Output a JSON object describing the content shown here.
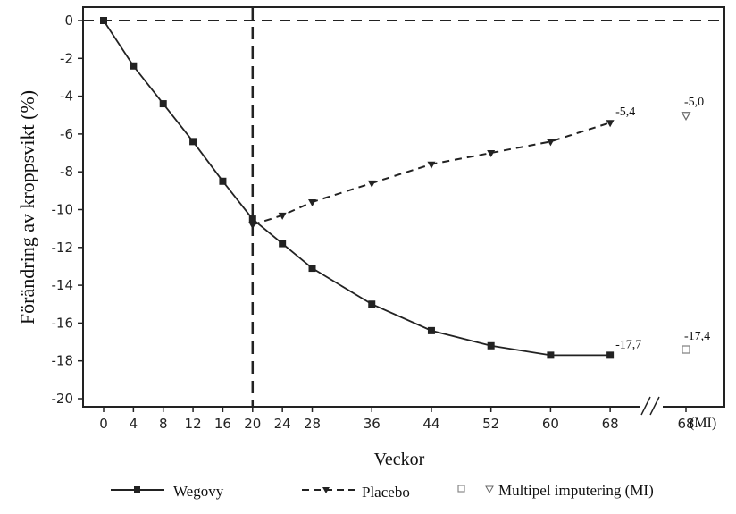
{
  "chart_data": {
    "type": "line",
    "title": "",
    "xlabel": "Veckor",
    "ylabel": "Förändring av kroppsvikt (%)",
    "ylim": [
      -20,
      0
    ],
    "yticks": [
      0,
      -2,
      -4,
      -6,
      -8,
      -10,
      -12,
      -14,
      -16,
      -18,
      -20
    ],
    "xticks": [
      0,
      4,
      8,
      12,
      16,
      20,
      24,
      28,
      36,
      44,
      52,
      60,
      68
    ],
    "mi_tick_label": "68",
    "mi_tick_suffix": "(MI)",
    "reference_lines": {
      "horizontal_y": 0,
      "vertical_x": 20
    },
    "series": [
      {
        "name": "Wegovy",
        "marker": "filled-square",
        "line": "solid",
        "x": [
          0,
          4,
          8,
          12,
          16,
          20,
          24,
          28,
          36,
          44,
          52,
          60,
          68
        ],
        "values": [
          0,
          -2.4,
          -4.4,
          -6.4,
          -8.5,
          -10.5,
          -11.8,
          -13.1,
          -15.0,
          -16.4,
          -17.2,
          -17.7,
          -17.7
        ],
        "end_label": "-17,7",
        "mi_value": -17.4,
        "mi_label": "-17,4"
      },
      {
        "name": "Placebo",
        "marker": "filled-triangle-down",
        "line": "dashed",
        "x": [
          20,
          24,
          28,
          36,
          44,
          52,
          60,
          68
        ],
        "values": [
          -10.8,
          -10.3,
          -9.6,
          -8.6,
          -7.6,
          -7.0,
          -6.4,
          -5.4
        ],
        "end_label": "-5,4",
        "mi_value": -5.0,
        "mi_label": "-5,0"
      }
    ],
    "legend": {
      "placement": "bottom",
      "items": [
        "Wegovy",
        "Placebo",
        "Multipel imputering (MI)"
      ]
    }
  }
}
